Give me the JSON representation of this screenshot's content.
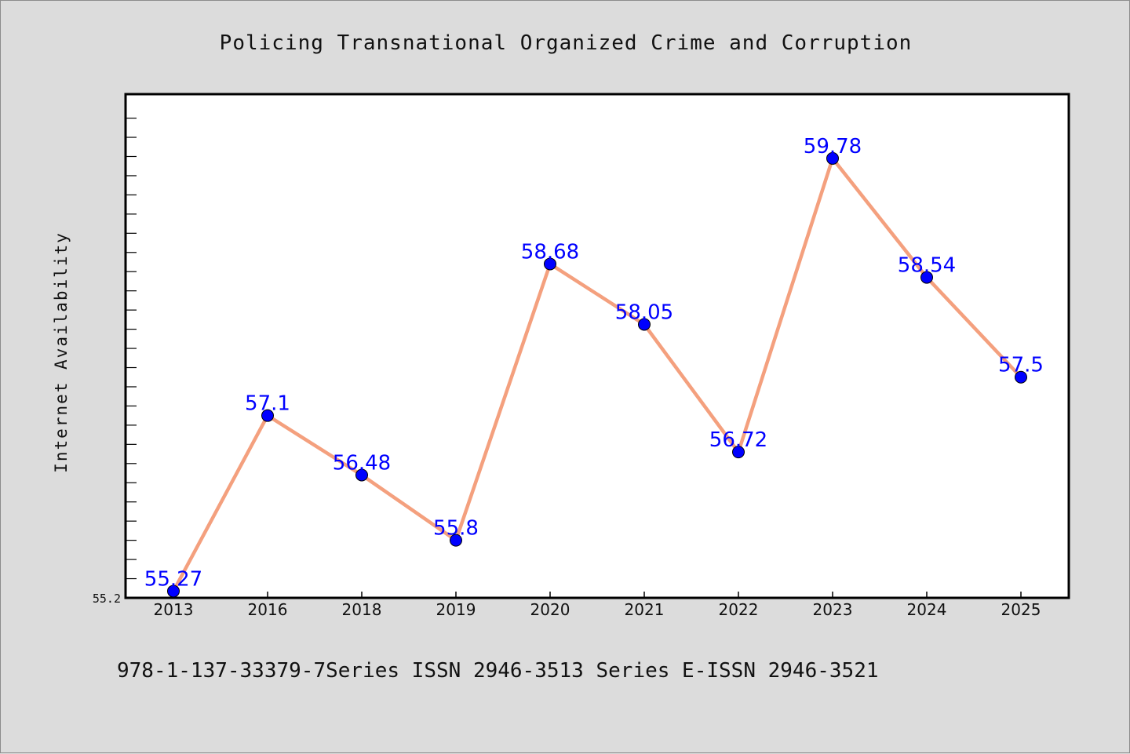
{
  "chart_data": {
    "type": "line",
    "title": "Policing Transnational Organized Crime and Corruption",
    "xlabel": "",
    "ylabel": "Internet Availability",
    "categories": [
      "2013",
      "2016",
      "2018",
      "2019",
      "2020",
      "2021",
      "2022",
      "2023",
      "2024",
      "2025"
    ],
    "series": [
      {
        "values": [
          55.27,
          57.1,
          56.48,
          55.8,
          58.68,
          58.05,
          56.72,
          59.78,
          58.54,
          57.5
        ],
        "labels": [
          "55.27",
          "57.1",
          "56.48",
          "55.8",
          "58.68",
          "58.05",
          "56.72",
          "59.78",
          "58.54",
          "57.5"
        ]
      }
    ],
    "ylim": [
      55.2,
      60.45
    ],
    "yticks": [
      "55.2"
    ],
    "grid": false,
    "colors": {
      "line": "#f4a07e",
      "marker": "#0000ff",
      "marker_edge": "#000000",
      "data_label": "#0000ff",
      "background": "#dcdcdc",
      "plot_background": "#ffffff"
    }
  },
  "footer": {
    "text": "978-1-137-33379-7Series ISSN 2946-3513 Series E-ISSN 2946-3521"
  }
}
